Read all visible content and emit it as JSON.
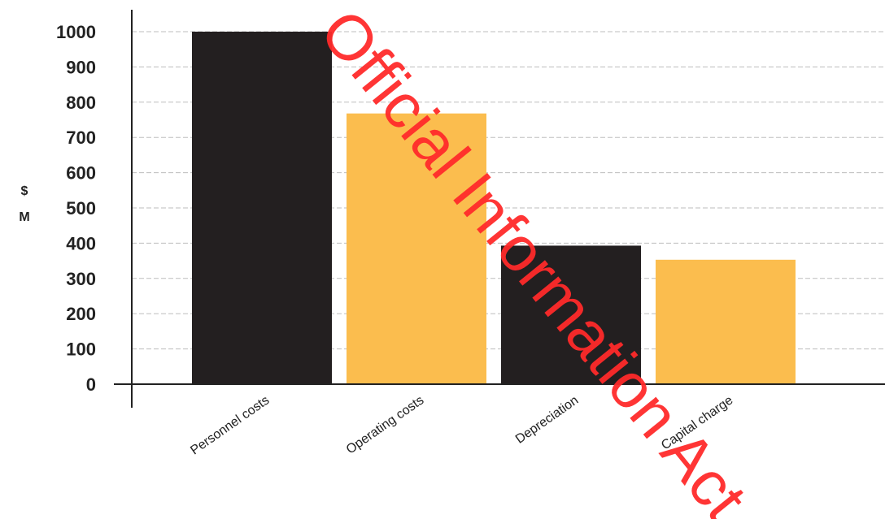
{
  "chart_data": {
    "type": "bar",
    "categories": [
      "Personnel costs",
      "Operating costs",
      "Depreciation",
      "Capital charge"
    ],
    "values": [
      1000,
      768,
      393,
      353
    ],
    "bar_colors": [
      "#231f20",
      "#fbbd4e",
      "#231f20",
      "#fbbd4e"
    ],
    "ylabel": "$ M",
    "ylabel_lines": [
      "$",
      "M"
    ],
    "yticks": [
      0,
      100,
      200,
      300,
      400,
      500,
      600,
      700,
      800,
      900,
      1000
    ],
    "ylim": [
      0,
      1000
    ],
    "grid": true
  },
  "watermark": {
    "text": "Official Information Act",
    "color": "#ff2a2a"
  }
}
